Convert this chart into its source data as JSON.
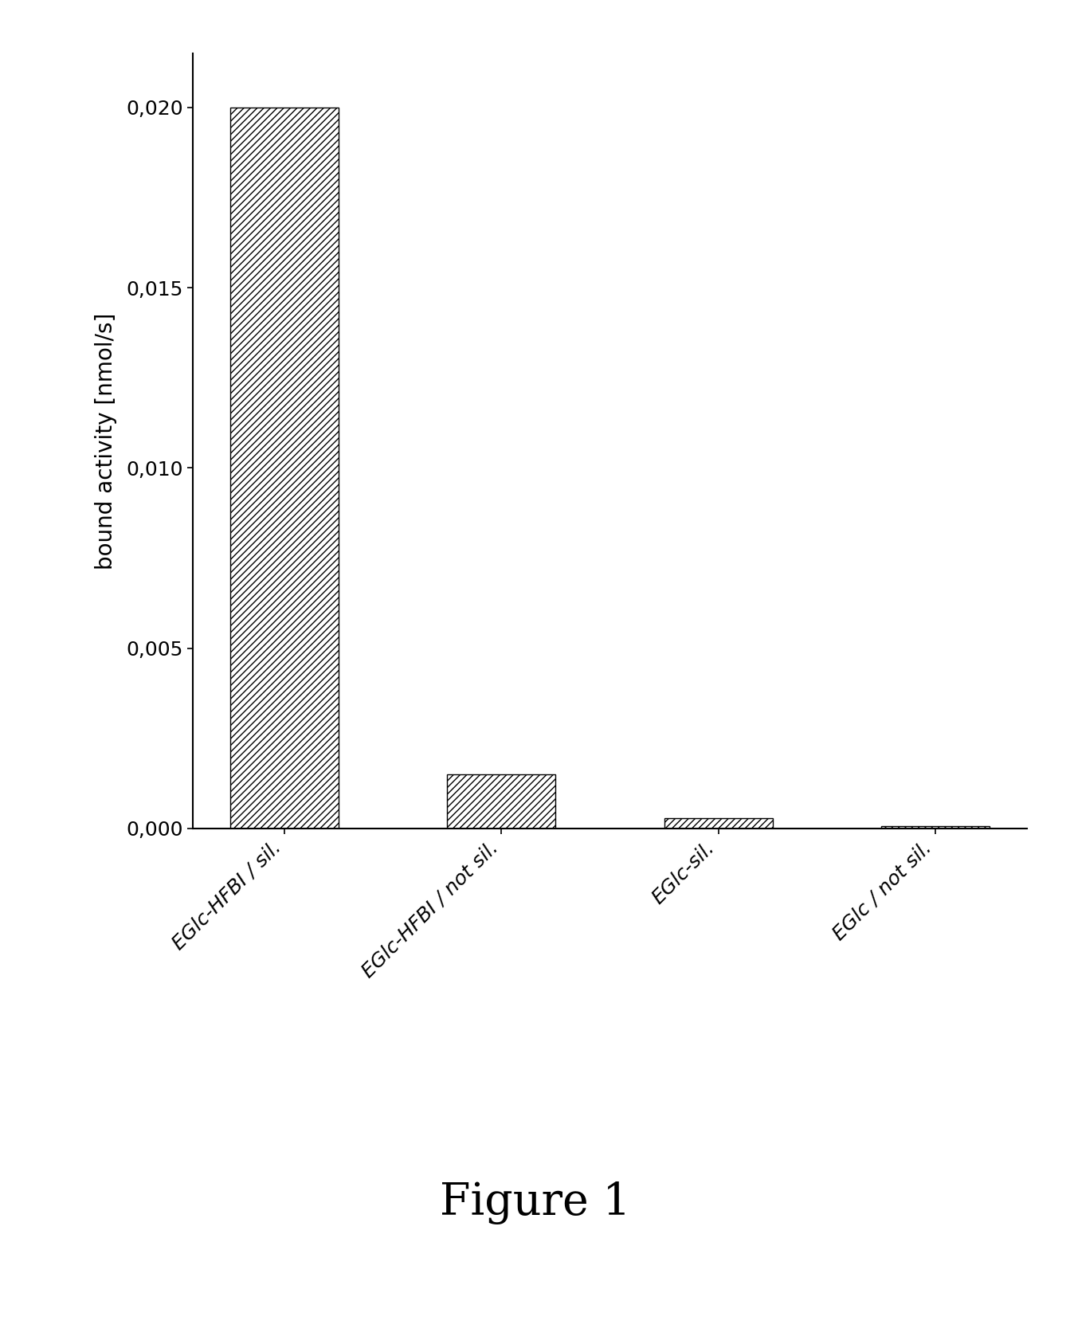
{
  "categories": [
    "EGlc-HFBI / sil.",
    "EGlc-HFBI / not sil.",
    "EGlc-sil.",
    "EGlc / not sil."
  ],
  "values": [
    0.02,
    0.0015,
    0.00028,
    5e-05
  ],
  "ylabel": "bound activity [nmol/s]",
  "ylim": [
    0,
    0.0215
  ],
  "yticks": [
    0.0,
    0.005,
    0.01,
    0.015,
    0.02
  ],
  "ytick_labels": [
    "0,000",
    "0,005",
    "0,010",
    "0,015",
    "0,020"
  ],
  "figure_caption": "Figure 1",
  "background_color": "#ffffff",
  "bar_color": "#ffffff",
  "bar_edgecolor": "#000000",
  "hatch": "////",
  "bar_width": 0.5,
  "axis_fontsize": 20,
  "tick_fontsize": 18,
  "caption_fontsize": 40,
  "ylabel_fontsize": 20
}
